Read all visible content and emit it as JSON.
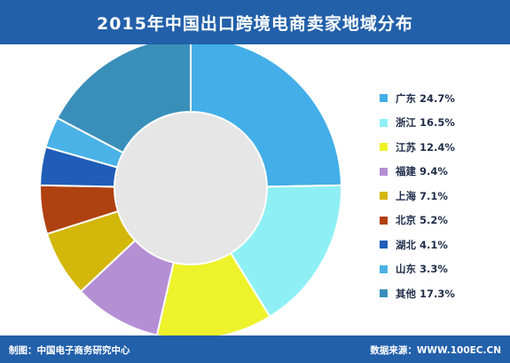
{
  "header": {
    "title": "2015年中国出口跨境电商卖家地域分布"
  },
  "chart_data": {
    "type": "pie",
    "title": "2015年中国出口跨境电商卖家地域分布",
    "slices": [
      {
        "name": "广东",
        "value": 24.7,
        "label": "24.7%",
        "color": "#43aee8"
      },
      {
        "name": "浙江",
        "value": 16.5,
        "label": "16.5%",
        "color": "#8ef0f4"
      },
      {
        "name": "江苏",
        "value": 12.4,
        "label": "12.4%",
        "color": "#eef22a"
      },
      {
        "name": "福建",
        "value": 9.4,
        "label": "9.4%",
        "color": "#b58fd4"
      },
      {
        "name": "上海",
        "value": 7.1,
        "label": "7.1%",
        "color": "#d3b70a"
      },
      {
        "name": "北京",
        "value": 5.2,
        "label": "5.2%",
        "color": "#b04110"
      },
      {
        "name": "湖北",
        "value": 4.1,
        "label": "4.1%",
        "color": "#1f5db8"
      },
      {
        "name": "山东",
        "value": 3.3,
        "label": "3.3%",
        "color": "#4ab2e6"
      },
      {
        "name": "其他",
        "value": 17.3,
        "label": "17.3%",
        "color": "#3a8fba"
      }
    ],
    "donut": true,
    "legend_position": "right"
  },
  "footer": {
    "left": "制图：中国电子商务研究中心",
    "right": "数据来源：WWW.100EC.CN"
  }
}
